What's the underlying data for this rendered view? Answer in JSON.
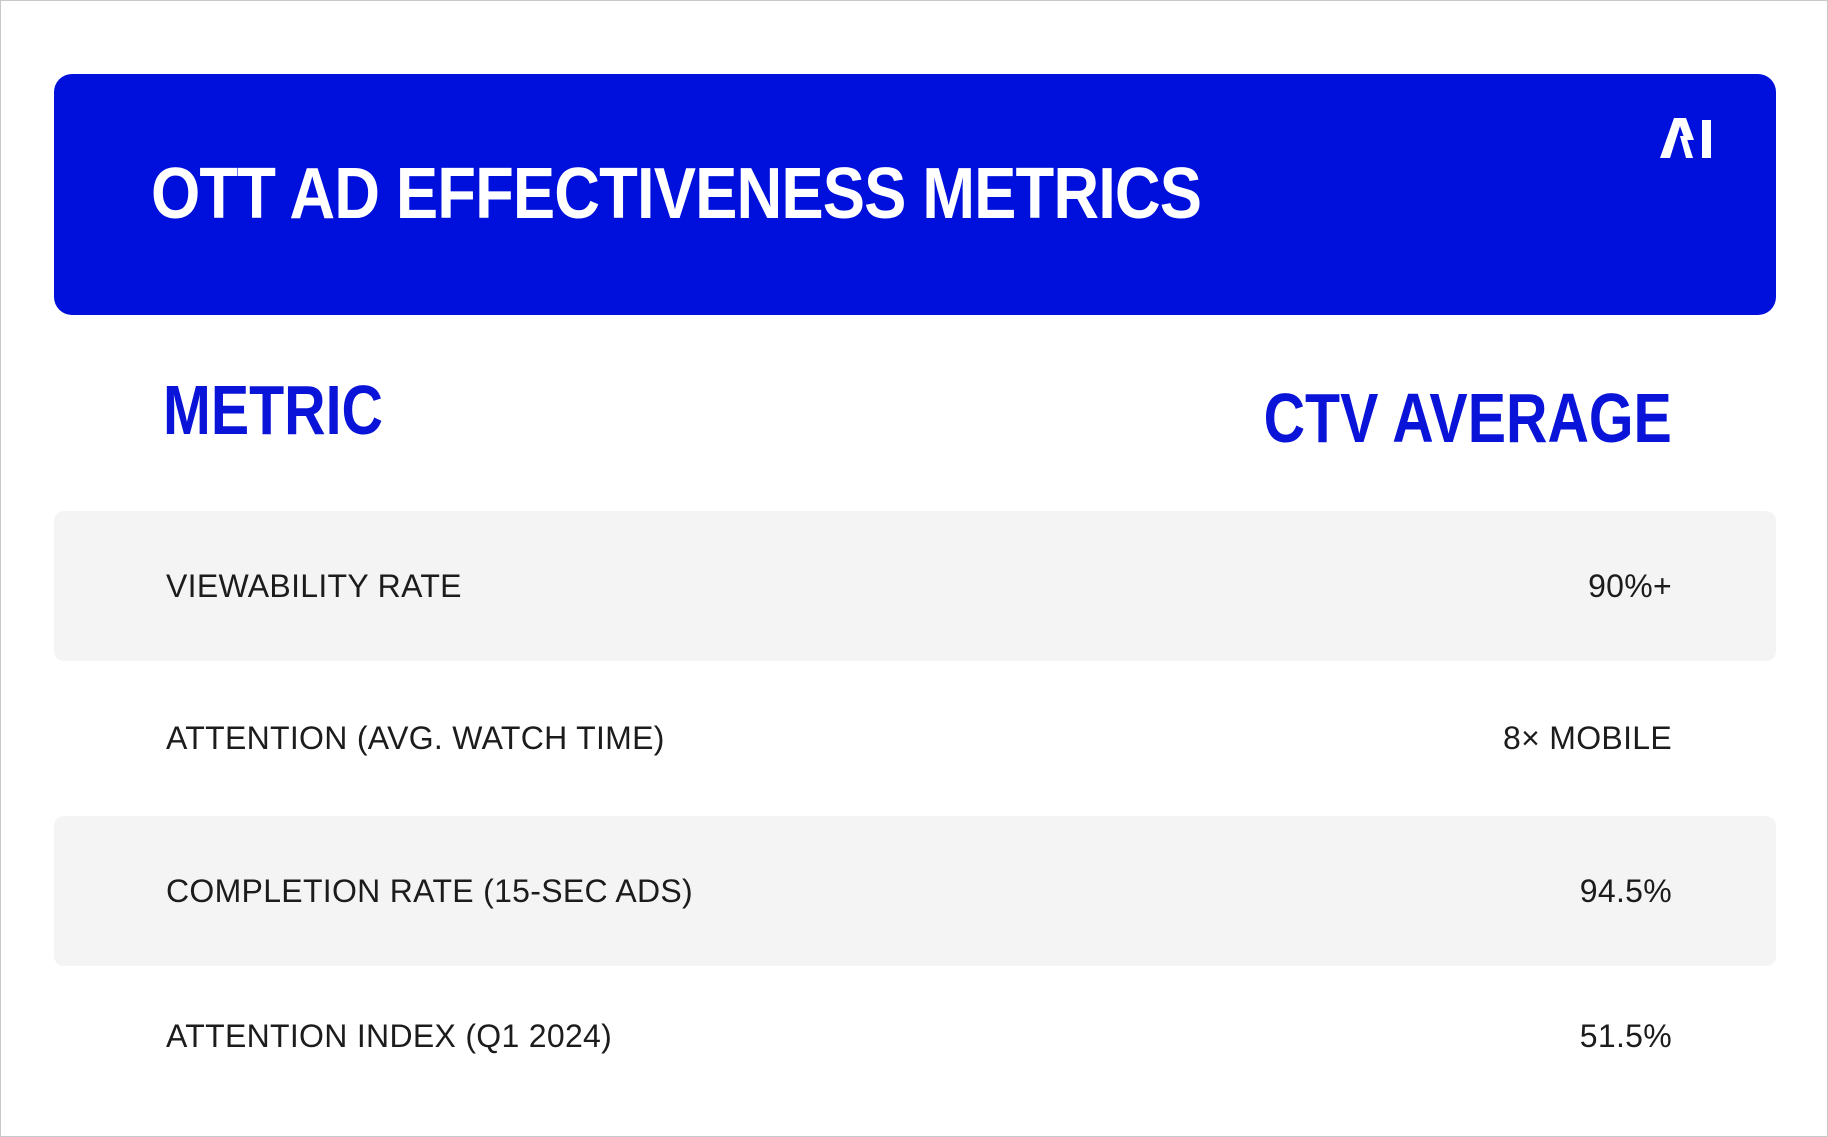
{
  "header": {
    "title": "OTT AD EFFECTIVENESS METRICS",
    "logo_text": "AI"
  },
  "table": {
    "columns": [
      "METRIC",
      "CTV AVERAGE"
    ],
    "rows": [
      {
        "metric": "VIEWABILITY RATE",
        "value": "90%+"
      },
      {
        "metric": "ATTENTION (AVG. WATCH TIME)",
        "value": "8× MOBILE"
      },
      {
        "metric": "COMPLETION RATE (15-SEC ADS)",
        "value": "94.5%"
      },
      {
        "metric": "ATTENTION INDEX (Q1 2024)",
        "value": "51.5%"
      }
    ]
  },
  "colors": {
    "brand_blue": "#0010dc",
    "header_text_blue": "#0a14d8",
    "row_shade": "#f4f4f4",
    "body_text": "#1c1c1c"
  }
}
